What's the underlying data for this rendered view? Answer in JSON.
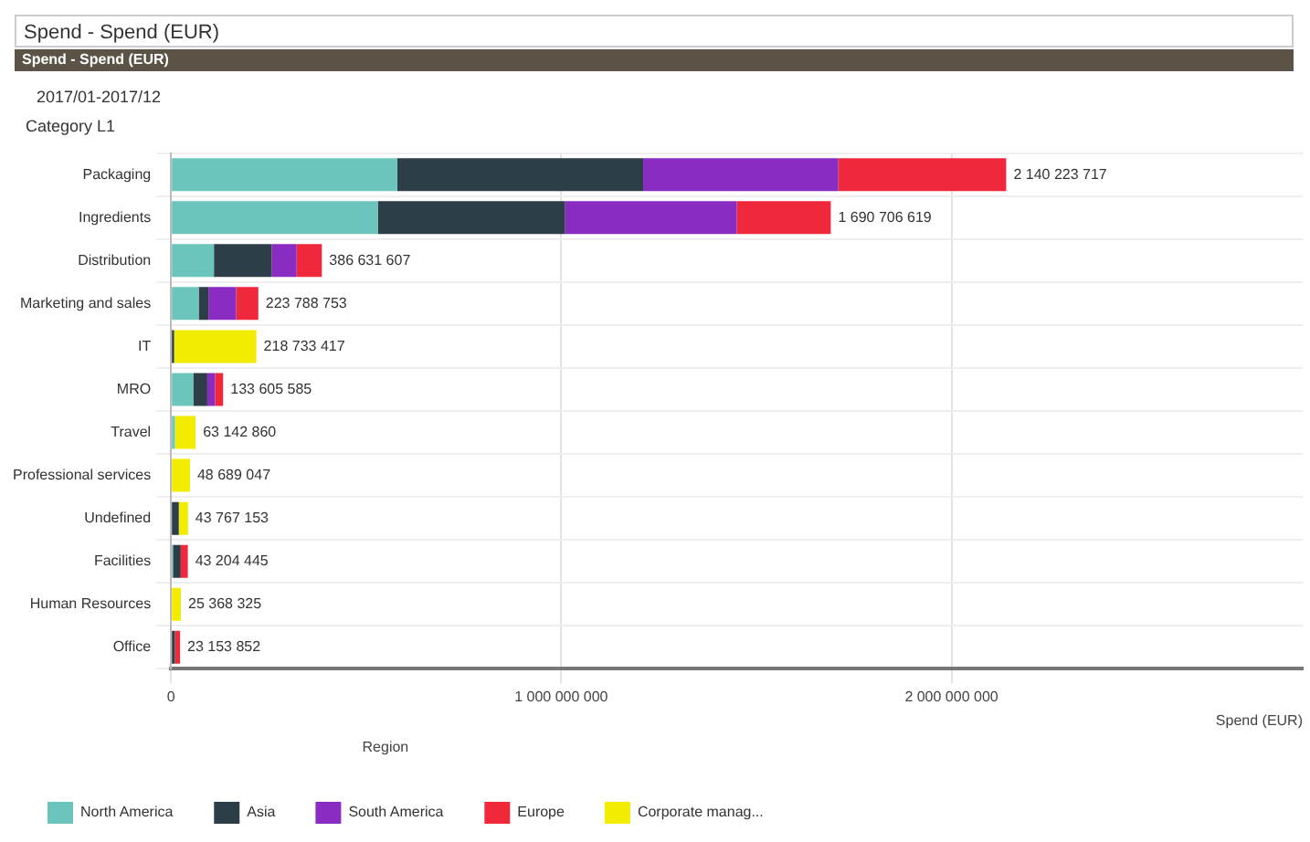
{
  "chart_data": {
    "type": "bar",
    "orientation": "horizontal",
    "stacked": true,
    "title": "Spend - Spend (EUR)",
    "subtitle": "2017/01-2017/12",
    "ylabel": "Category L1",
    "xlabel": "Spend (EUR)",
    "legend_title": "Region",
    "annotations": [
      "Spend - Spend (EUR)"
    ],
    "categories": [
      "Packaging",
      "Ingredients",
      "Distribution",
      "Marketing and sales",
      "IT",
      "MRO",
      "Travel",
      "Professional services",
      "Undefined",
      "Facilities",
      "Human Resources",
      "Office"
    ],
    "series": [
      {
        "name": "North America",
        "color": "#6cc5bd",
        "values": [
          580000000,
          530000000,
          110000000,
          71000000,
          null,
          57000000,
          10000000,
          null,
          null,
          5000000,
          null,
          null
        ]
      },
      {
        "name": "Asia",
        "color": "#2e3e48",
        "values": [
          630000000,
          480000000,
          148000000,
          25000000,
          8000000,
          36000000,
          null,
          null,
          20000000,
          20000000,
          null,
          10000000
        ]
      },
      {
        "name": "South America",
        "color": "#8a2bc2",
        "values": [
          500000000,
          440000000,
          64000000,
          71000000,
          null,
          20000000,
          null,
          null,
          null,
          null,
          null,
          null
        ]
      },
      {
        "name": "Europe",
        "color": "#f0283c",
        "values": [
          430223717,
          240706619,
          64631607,
          56788753,
          null,
          20605585,
          null,
          null,
          null,
          18204445,
          null,
          13153852
        ]
      },
      {
        "name": "Corporate manag...",
        "color": "#f2ec00",
        "values": [
          null,
          null,
          null,
          null,
          210733417,
          null,
          53142860,
          48689047,
          23767153,
          null,
          25368325,
          null
        ]
      }
    ],
    "totals": [
      "2 140 223 717",
      "1 690 706 619",
      "386 631 607",
      "223 788 753",
      "218 733 417",
      "133 605 585",
      "63 142 860",
      "48 689 047",
      "43 767 153",
      "43 204 445",
      "25 368 325",
      "23 153 852"
    ],
    "xlim": [
      0,
      2900000000
    ],
    "xticks": [
      0,
      {
        "value": 1000000000,
        "label": "1 000 000 000"
      },
      {
        "value": 2000000000,
        "label": "2 000 000 000"
      }
    ],
    "grid": true,
    "legend": "bottom"
  }
}
